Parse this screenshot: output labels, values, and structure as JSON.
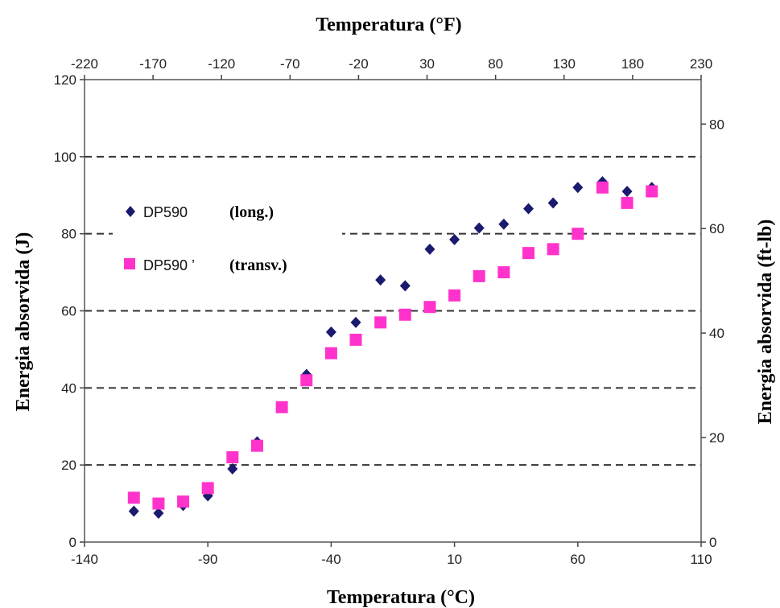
{
  "chart_data": {
    "type": "scatter",
    "title_top": "Temperatura (°F)",
    "xlabel": "Temperatura (°C)",
    "ylabel": "Energia absorvida (J)",
    "ylabel_right": "Energia absorvida (ft-lb)",
    "xlim": [
      -140,
      110
    ],
    "ylim": [
      0,
      120
    ],
    "x_ticks": [
      "-140",
      "-90",
      "-40",
      "10",
      "60",
      "110"
    ],
    "x_tick_values": [
      -140,
      -90,
      -40,
      10,
      60,
      110
    ],
    "y_ticks": [
      "0",
      "20",
      "40",
      "60",
      "80",
      "100",
      "120"
    ],
    "y_tick_values": [
      0,
      20,
      40,
      60,
      80,
      100,
      120
    ],
    "top_ticks": [
      "-220",
      "-170",
      "-120",
      "-70",
      "-20",
      "30",
      "80",
      "130",
      "180",
      "230"
    ],
    "top_tick_values_F": [
      -220,
      -170,
      -120,
      -70,
      -20,
      30,
      80,
      130,
      180,
      230
    ],
    "right_ticks": [
      "0",
      "20",
      "40",
      "60",
      "80"
    ],
    "right_tick_values_ftlb": [
      0,
      20,
      40,
      60,
      80
    ],
    "grid": "horizontal dashed lines at 20, 40, 60, 80, 100",
    "legend_position": "top-left, inside plot",
    "series": [
      {
        "name": "DP590",
        "note": "(long.)",
        "marker": "diamond",
        "color": "#1a1a6e",
        "x": [
          -120,
          -110,
          -100,
          -90,
          -80,
          -70,
          -60,
          -50,
          -40,
          -30,
          -20,
          -10,
          0,
          10,
          20,
          30,
          40,
          50,
          60,
          70,
          80,
          90
        ],
        "y": [
          8,
          7.5,
          9.5,
          12,
          19,
          26,
          35,
          43.5,
          54.5,
          57,
          68,
          66.5,
          76,
          78.5,
          81.5,
          82.5,
          86.5,
          88,
          92,
          93.5,
          91,
          92
        ]
      },
      {
        "name": "DP590 ’",
        "note": "(transv.)",
        "marker": "square",
        "color": "#ff33cc",
        "x": [
          -120,
          -110,
          -100,
          -90,
          -80,
          -70,
          -60,
          -50,
          -40,
          -30,
          -20,
          -10,
          0,
          10,
          20,
          30,
          40,
          50,
          60,
          70,
          80,
          90
        ],
        "y": [
          11.5,
          10,
          10.5,
          14,
          22,
          25,
          35,
          42,
          49,
          52.5,
          57,
          59,
          61,
          64,
          69,
          70,
          75,
          76,
          80,
          92,
          88,
          91
        ]
      }
    ]
  }
}
